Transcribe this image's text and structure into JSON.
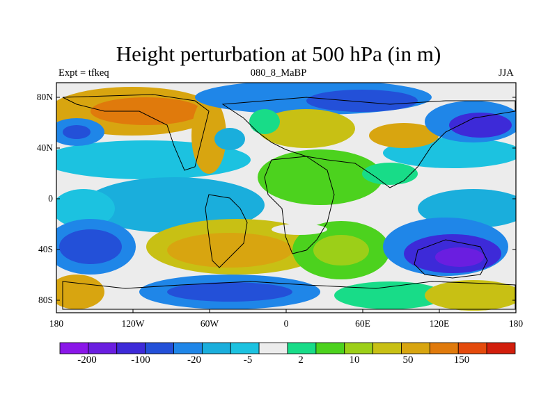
{
  "title": "Height perturbation at 500 hPa (in m)",
  "left_subtitle": "Expt = tfkeq",
  "center_subtitle": "080_8_MaBP",
  "right_subtitle": "JJA",
  "y_ticks": [
    "80N",
    "40N",
    "0",
    "40S",
    "80S"
  ],
  "x_ticks": [
    "180",
    "120W",
    "60W",
    "0",
    "60E",
    "120E",
    "180"
  ],
  "colorbar": {
    "labels": [
      "-200",
      "-100",
      "-20",
      "-5",
      "2",
      "10",
      "50",
      "150"
    ],
    "colors": [
      "#8a16e8",
      "#6a1ee0",
      "#3d2ad8",
      "#2350d8",
      "#1f86e8",
      "#1aaedc",
      "#1cc2e0",
      "#ececec",
      "#18dc88",
      "#4cd21e",
      "#9ccf18",
      "#c8c014",
      "#d8a510",
      "#e07a0c",
      "#e44a0c",
      "#d21e0c"
    ]
  }
}
